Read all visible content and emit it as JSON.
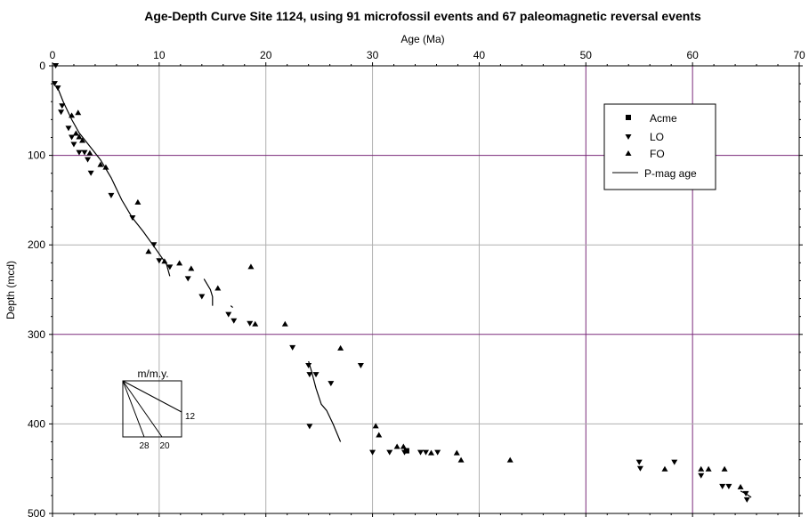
{
  "chart_data": {
    "type": "scatter",
    "title": "Age-Depth Curve Site 1124, using 91 microfossil events and 67 paleomagnetic reversal events",
    "xlabel": "Age (Ma)",
    "ylabel": "Depth (mcd)",
    "xlim": [
      0,
      70
    ],
    "ylim": [
      500,
      0
    ],
    "x_axis_position": "top",
    "y_inverted": true,
    "xticks": [
      0,
      10,
      20,
      30,
      40,
      50,
      60,
      70
    ],
    "xtick_labels": [
      "0",
      "10",
      "20",
      "30",
      "40",
      "50",
      "60",
      "70"
    ],
    "yticks": [
      0,
      100,
      200,
      300,
      400,
      500
    ],
    "ytick_labels": [
      "0",
      "100",
      "200",
      "300",
      "400",
      "500"
    ],
    "grid": true,
    "grid_colors": {
      "major_lines": "#7a2a7a",
      "minor_lines": "#b0b0b0"
    },
    "legend": {
      "placement": "upper-right",
      "entries": [
        {
          "name": "Acme",
          "marker": "square"
        },
        {
          "name": "LO",
          "marker": "triangle-down"
        },
        {
          "name": "FO",
          "marker": "triangle-up"
        },
        {
          "name": "P-mag age",
          "marker": "line"
        }
      ]
    },
    "series": [
      {
        "name": "Acme",
        "marker": "square",
        "points": [
          [
            33.2,
            430
          ]
        ]
      },
      {
        "name": "LO",
        "marker": "triangle-down",
        "points": [
          [
            0.3,
            0
          ],
          [
            0.2,
            20
          ],
          [
            0.5,
            25
          ],
          [
            0.9,
            45
          ],
          [
            0.8,
            52
          ],
          [
            1.5,
            70
          ],
          [
            1.8,
            80
          ],
          [
            2.0,
            88
          ],
          [
            2.5,
            97
          ],
          [
            3.0,
            97
          ],
          [
            3.3,
            105
          ],
          [
            3.6,
            120
          ],
          [
            5.5,
            145
          ],
          [
            7.5,
            170
          ],
          [
            9.5,
            200
          ],
          [
            10.0,
            218
          ],
          [
            11.0,
            225
          ],
          [
            12.7,
            238
          ],
          [
            14.0,
            258
          ],
          [
            16.5,
            278
          ],
          [
            17.0,
            285
          ],
          [
            18.5,
            288
          ],
          [
            22.5,
            315
          ],
          [
            24.0,
            335
          ],
          [
            24.1,
            345
          ],
          [
            24.7,
            345
          ],
          [
            24.1,
            403
          ],
          [
            26.1,
            355
          ],
          [
            28.9,
            335
          ],
          [
            30.0,
            432
          ],
          [
            31.6,
            432
          ],
          [
            33.0,
            432
          ],
          [
            34.5,
            432
          ],
          [
            35.0,
            432
          ],
          [
            36.1,
            432
          ],
          [
            55.0,
            443
          ],
          [
            55.1,
            450
          ],
          [
            58.3,
            443
          ],
          [
            60.8,
            458
          ],
          [
            62.8,
            470
          ],
          [
            63.4,
            470
          ],
          [
            65.0,
            478
          ],
          [
            65.1,
            485
          ]
        ]
      },
      {
        "name": "FO",
        "marker": "triangle-up",
        "points": [
          [
            1.8,
            55
          ],
          [
            2.4,
            52
          ],
          [
            2.5,
            79
          ],
          [
            2.2,
            75
          ],
          [
            2.8,
            83
          ],
          [
            3.5,
            97
          ],
          [
            4.5,
            110
          ],
          [
            5.0,
            113
          ],
          [
            8.0,
            152
          ],
          [
            9.0,
            207
          ],
          [
            10.5,
            218
          ],
          [
            11.9,
            220
          ],
          [
            13.0,
            226
          ],
          [
            15.5,
            248
          ],
          [
            18.6,
            224
          ],
          [
            19.0,
            288
          ],
          [
            21.8,
            288
          ],
          [
            27.0,
            315
          ],
          [
            30.3,
            402
          ],
          [
            30.6,
            412
          ],
          [
            32.3,
            425
          ],
          [
            32.9,
            425
          ],
          [
            35.5,
            432
          ],
          [
            37.9,
            432
          ],
          [
            38.3,
            440
          ],
          [
            42.9,
            440
          ],
          [
            57.4,
            450
          ],
          [
            60.8,
            450
          ],
          [
            61.5,
            450
          ],
          [
            63.0,
            450
          ],
          [
            64.5,
            470
          ]
        ]
      }
    ],
    "pmag_segments": [
      [
        [
          0.4,
          22
        ],
        [
          1.0,
          40
        ],
        [
          1.8,
          60
        ],
        [
          2.5,
          75
        ],
        [
          3.5,
          90
        ],
        [
          4.5,
          105
        ],
        [
          5.5,
          125
        ],
        [
          6.5,
          150
        ],
        [
          7.5,
          170
        ],
        [
          8.5,
          185
        ],
        [
          9.4,
          200
        ],
        [
          10.0,
          210
        ],
        [
          10.7,
          222
        ],
        [
          11.0,
          235
        ]
      ],
      [
        [
          14.2,
          238
        ],
        [
          14.8,
          250
        ],
        [
          15.0,
          258
        ],
        [
          15.0,
          268
        ]
      ],
      [
        [
          16.7,
          268
        ],
        [
          16.9,
          270
        ]
      ],
      [
        [
          24.0,
          330
        ],
        [
          24.3,
          342
        ],
        [
          24.7,
          360
        ],
        [
          25.2,
          378
        ],
        [
          25.7,
          385
        ],
        [
          26.3,
          400
        ],
        [
          27.0,
          420
        ]
      ],
      [
        [
          64.5,
          475
        ],
        [
          65.0,
          478
        ],
        [
          65.5,
          482
        ]
      ]
    ],
    "inset": {
      "title": "m/m.y.",
      "rate_labels": [
        "12",
        "28",
        "20"
      ]
    }
  }
}
